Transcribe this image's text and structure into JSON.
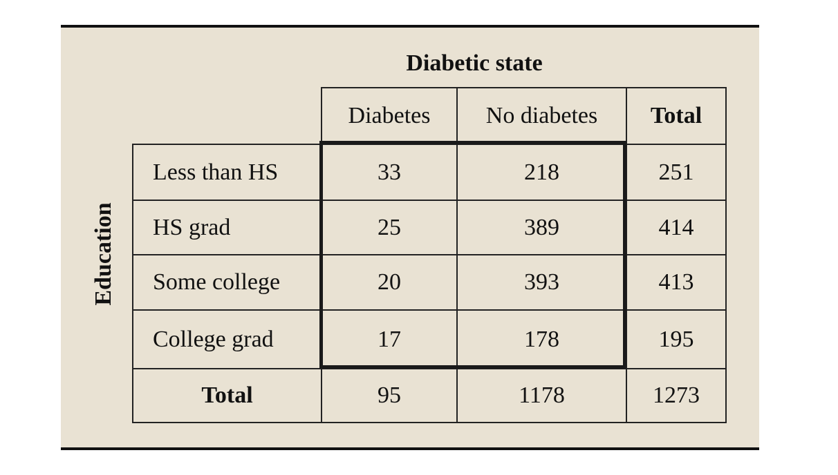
{
  "table": {
    "column_group_title": "Diabetic state",
    "row_group_title": "Education",
    "column_headers": [
      "Diabetes",
      "No diabetes",
      "Total"
    ],
    "rows": [
      {
        "label": "Less than HS",
        "values": [
          "33",
          "218",
          "251"
        ]
      },
      {
        "label": "HS grad",
        "values": [
          "25",
          "389",
          "414"
        ]
      },
      {
        "label": "Some college",
        "values": [
          "20",
          "393",
          "413"
        ]
      },
      {
        "label": "College grad",
        "values": [
          "17",
          "178",
          "195"
        ]
      }
    ],
    "total_row": {
      "label": "Total",
      "values": [
        "95",
        "1178",
        "1273"
      ]
    }
  },
  "colors": {
    "panel_background": "#e9e2d3",
    "border": "#222222"
  }
}
